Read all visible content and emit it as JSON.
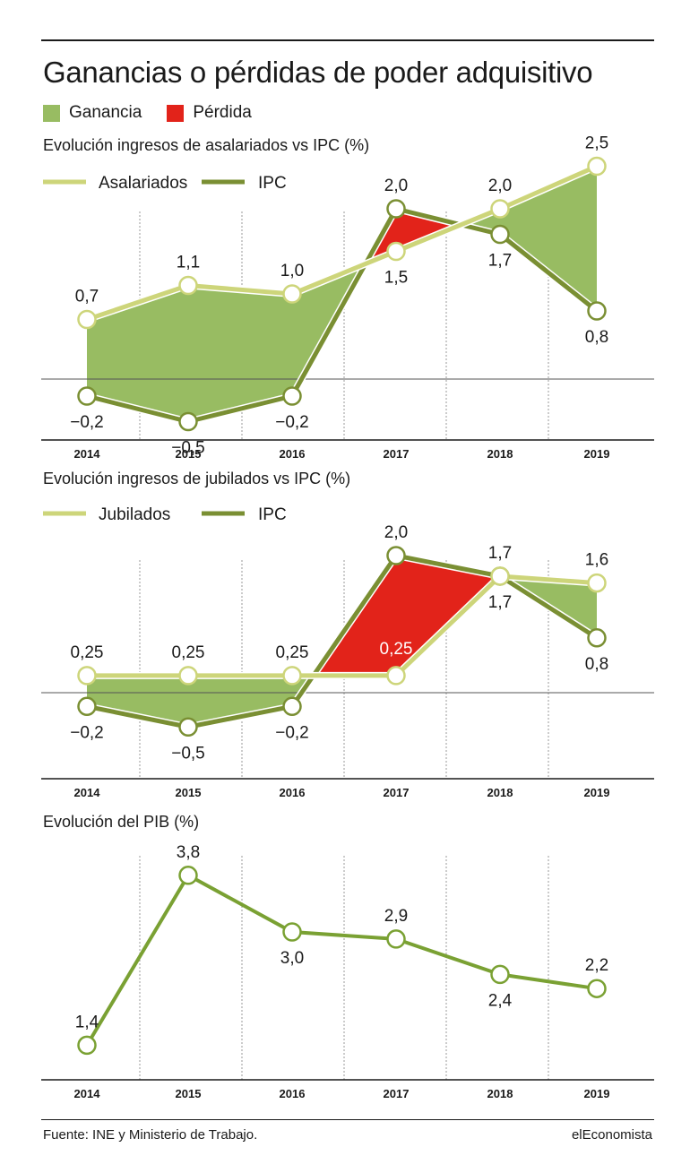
{
  "title": "Ganancias o pérdidas de poder adquisitivo",
  "legend": {
    "gain_label": "Ganancia",
    "loss_label": "Pérdida"
  },
  "colors": {
    "gain": "#98bc62",
    "loss": "#e2231a",
    "light_line": "#cdd57a",
    "dark_line": "#7a8f33",
    "pib_line": "#7aa133"
  },
  "source": "Fuente: INE y Ministerio de Trabajo.",
  "brand": "elEconomista",
  "chart_data": [
    {
      "type": "line",
      "title": "Evolución ingresos de asalariados vs IPC (%)",
      "x": [
        "2014",
        "2015",
        "2016",
        "2017",
        "2018",
        "2019"
      ],
      "series": [
        {
          "name": "Asalariados",
          "values": [
            0.7,
            1.1,
            1.0,
            1.5,
            2.0,
            2.5
          ],
          "labels": [
            "0,7",
            "1,1",
            "1,0",
            "1,5",
            "2,0",
            "2,5"
          ]
        },
        {
          "name": "IPC",
          "values": [
            -0.2,
            -0.5,
            -0.2,
            2.0,
            1.7,
            0.8
          ],
          "labels": [
            "−0,2",
            "−0,5",
            "−0,2",
            "2,0",
            "1,7",
            "0,8"
          ]
        }
      ],
      "fill_between": "gain where first series above second, loss where below",
      "grid": "vertical dotted",
      "legend_position": "top-left"
    },
    {
      "type": "line",
      "title": "Evolución ingresos de jubilados vs IPC (%)",
      "x": [
        "2014",
        "2015",
        "2016",
        "2017",
        "2018",
        "2019"
      ],
      "series": [
        {
          "name": "Jubilados",
          "values": [
            0.25,
            0.25,
            0.25,
            0.25,
            1.7,
            1.6
          ],
          "labels": [
            "0,25",
            "0,25",
            "0,25",
            "0,25",
            "1,7",
            "1,6"
          ]
        },
        {
          "name": "IPC",
          "values": [
            -0.2,
            -0.5,
            -0.2,
            2.0,
            1.7,
            0.8
          ],
          "labels": [
            "−0,2",
            "−0,5",
            "−0,2",
            "2,0",
            "1,7",
            "0,8"
          ]
        }
      ],
      "fill_between": "gain where first series above second, loss where below",
      "grid": "vertical dotted",
      "legend_position": "top-left"
    },
    {
      "type": "line",
      "title": "Evolución del PIB (%)",
      "x": [
        "2014",
        "2015",
        "2016",
        "2017",
        "2018",
        "2019"
      ],
      "series": [
        {
          "values": [
            1.4,
            3.8,
            3.0,
            2.9,
            2.4,
            2.2
          ],
          "labels": [
            "1,4",
            "3,8",
            "3,0",
            "2,9",
            "2,4",
            "2,2"
          ]
        }
      ],
      "grid": "vertical dotted"
    }
  ]
}
